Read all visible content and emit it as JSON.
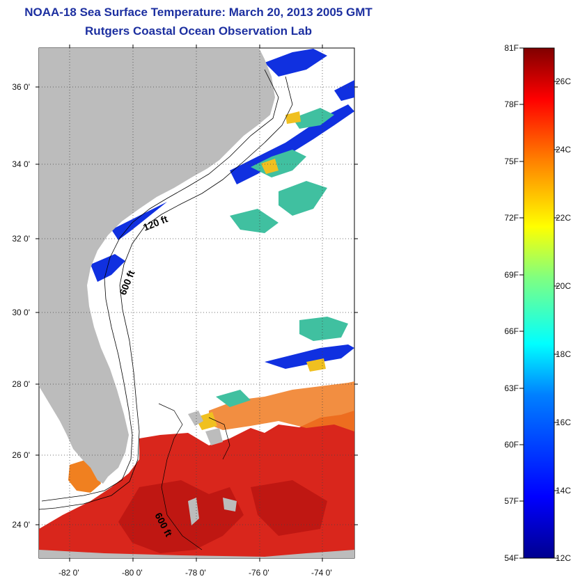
{
  "header": {
    "title": "NOAA-18 Sea Surface Temperature:  March 20, 2013 2005 GMT",
    "subtitle": "Rutgers Coastal Ocean Observation Lab"
  },
  "map": {
    "lat_labels": [
      "36 0'",
      "34 0'",
      "32 0'",
      "30 0'",
      "28 0'",
      "26 0'",
      "24 0'"
    ],
    "lon_labels": [
      "-82 0'",
      "-80 0'",
      "-78 0'",
      "-76 0'",
      "-74 0'"
    ],
    "contour_labels": [
      "120 ft",
      "600 ft",
      "600 ft"
    ],
    "lat_range": [
      23,
      37
    ],
    "lon_range": [
      -83,
      -73
    ],
    "colors": {
      "land": "#bcbcbc",
      "ocean_nodata": "#ffffff",
      "grid": "#555555"
    }
  },
  "colorbar": {
    "fahrenheit_labels": [
      "81F",
      "78F",
      "75F",
      "72F",
      "69F",
      "66F",
      "63F",
      "60F",
      "57F",
      "54F"
    ],
    "celsius_labels": [
      "26C",
      "24C",
      "22C",
      "20C",
      "18C",
      "16C",
      "14C",
      "12C"
    ],
    "colors": [
      "#00008f",
      "#0000ff",
      "#0080ff",
      "#00ffff",
      "#80ff80",
      "#ffff00",
      "#ff8000",
      "#ff0000",
      "#800000"
    ]
  }
}
